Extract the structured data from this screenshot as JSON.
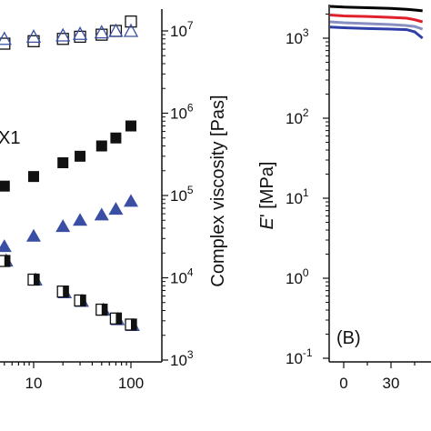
{
  "chart_data": [
    {
      "type": "scatter",
      "panel": "A",
      "xlabel": "",
      "x_scale": "log",
      "x_ticks": [
        "10",
        "100"
      ],
      "right_ylabel": "Complex viscosity [Pas]",
      "right_y_scale": "log",
      "right_ylim": [
        1000,
        10000000
      ],
      "right_y_tick_labels": [
        "10",
        "10",
        "10",
        "10",
        "10"
      ],
      "right_y_tick_exponents": [
        "3",
        "4",
        "5",
        "6",
        "7"
      ],
      "annotation": "X1",
      "marker_colors": {
        "black": "#111111",
        "blue": "#3a4fa3"
      },
      "x": [
        2,
        3,
        5,
        10,
        20,
        30,
        50,
        70,
        100
      ],
      "series": [
        {
          "marker": "open-square",
          "color": "#111111",
          "y_complex_viscosity": [
            6000000,
            6500000,
            7000000,
            7500000,
            8000000,
            8500000,
            9000000,
            10000000,
            13000000
          ]
        },
        {
          "marker": "open-triangle",
          "color": "#3a4fa3",
          "y_complex_viscosity": [
            7000000,
            7500000,
            8000000,
            8500000,
            8800000,
            9200000,
            9600000,
            10000000,
            10000000
          ]
        },
        {
          "marker": "filled-square",
          "color": "#111111",
          "y_complex_viscosity": [
            90000,
            110000,
            130000,
            170000,
            250000,
            300000,
            400000,
            500000,
            700000
          ]
        },
        {
          "marker": "filled-triangle",
          "color": "#3a4fa3",
          "y_complex_viscosity": [
            18000,
            20000,
            24000,
            32000,
            42000,
            50000,
            58000,
            68000,
            85000
          ]
        },
        {
          "marker": "open-triangle-with-fill",
          "color": "#3a4fa3",
          "y_complex_viscosity": [
            25000,
            22000,
            17000,
            10000,
            7000,
            5500,
            4300,
            3300,
            2800
          ]
        },
        {
          "marker": "mixed-square",
          "color": "#111111",
          "y_complex_viscosity": [
            24000,
            21000,
            16000,
            9500,
            6800,
            5300,
            4100,
            3200,
            2700
          ]
        }
      ]
    },
    {
      "type": "line",
      "panel": "B",
      "panel_label": "(B)",
      "ylabel_prefix": "E",
      "ylabel_suffix": "' [MPa]",
      "y_scale": "log",
      "ylim": [
        0.1,
        3000
      ],
      "y_tick_labels": [
        "10",
        "10",
        "10",
        "10",
        "10"
      ],
      "y_tick_exponents": [
        "-1",
        "0",
        "1",
        "2",
        "3"
      ],
      "x_ticks": [
        "0",
        "30"
      ],
      "series_colors": [
        "#000000",
        "#e0202a",
        "#8890c0",
        "#2f3fa8"
      ],
      "series": [
        {
          "color": "#000000",
          "x": [
            -10,
            0,
            15,
            30,
            40,
            45,
            50
          ],
          "y": [
            2500,
            2450,
            2400,
            2350,
            2300,
            2250,
            2200
          ]
        },
        {
          "color": "#e0202a",
          "x": [
            -10,
            0,
            15,
            30,
            40,
            45,
            50
          ],
          "y": [
            1950,
            1900,
            1870,
            1820,
            1780,
            1700,
            1600
          ]
        },
        {
          "color": "#8890c0",
          "x": [
            -10,
            0,
            15,
            30,
            40,
            45,
            50
          ],
          "y": [
            1600,
            1560,
            1520,
            1480,
            1440,
            1400,
            1300
          ]
        },
        {
          "color": "#2f3fa8",
          "x": [
            -10,
            0,
            15,
            30,
            40,
            45,
            50
          ],
          "y": [
            1380,
            1350,
            1320,
            1300,
            1280,
            1200,
            1000
          ]
        }
      ]
    }
  ]
}
